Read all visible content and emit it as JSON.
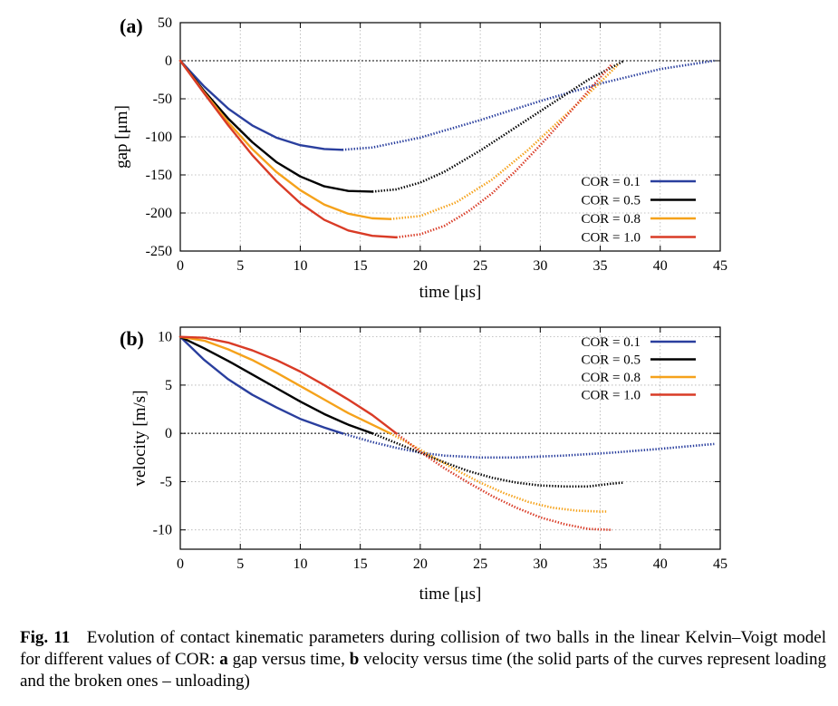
{
  "figure": {
    "caption": {
      "number": "Fig. 11",
      "segments": [
        {
          "text": "Evolution of contact kinematic parameters during collision of two balls in the linear Kelvin–Voigt model for different values of COR: ",
          "bold": false
        },
        {
          "text": "a",
          "bold": true
        },
        {
          "text": " gap versus time, ",
          "bold": false
        },
        {
          "text": "b",
          "bold": true
        },
        {
          "text": " velocity versus time (the solid parts of the curves represent loading and the broken ones – unloading)",
          "bold": false
        }
      ]
    }
  },
  "chart_data": [
    {
      "type": "line",
      "panel_label": "(a)",
      "xlabel": "time [μs]",
      "ylabel": "gap [μm]",
      "xlim": [
        0,
        45
      ],
      "ylim": [
        -250,
        50
      ],
      "xticks": [
        0,
        5,
        10,
        15,
        20,
        25,
        30,
        35,
        40,
        45
      ],
      "yticks": [
        50,
        0,
        -50,
        -100,
        -150,
        -200,
        -250
      ],
      "grid": true,
      "zero_line": true,
      "legend_position": "bottom-right",
      "series": [
        {
          "name": "COR = 0.1",
          "color": "#2a3f9e",
          "loading": {
            "x": [
              0,
              2,
              4,
              6,
              8,
              10,
              12,
              13.5
            ],
            "y": [
              0,
              -34,
              -63,
              -85,
              -101,
              -111,
              -116,
              -117
            ]
          },
          "unloading": {
            "x": [
              13.5,
              16,
              20,
              25,
              30,
              35,
              40,
              44.5
            ],
            "y": [
              -117,
              -114,
              -101,
              -78,
              -53,
              -30,
              -11,
              0
            ]
          }
        },
        {
          "name": "COR = 0.5",
          "color": "#000000",
          "loading": {
            "x": [
              0,
              2,
              4,
              6,
              8,
              10,
              12,
              14,
              16
            ],
            "y": [
              0,
              -40,
              -76,
              -107,
              -133,
              -152,
              -165,
              -171,
              -172
            ]
          },
          "unloading": {
            "x": [
              16,
              18,
              20,
              22,
              25,
              28,
              31,
              34,
              37
            ],
            "y": [
              -172,
              -169,
              -160,
              -146,
              -118,
              -87,
              -56,
              -25,
              0
            ]
          }
        },
        {
          "name": "COR = 0.8",
          "color": "#f5a21b",
          "loading": {
            "x": [
              0,
              2,
              4,
              6,
              8,
              10,
              12,
              14,
              16,
              17.5
            ],
            "y": [
              0,
              -42,
              -81,
              -116,
              -146,
              -170,
              -189,
              -201,
              -207,
              -208
            ]
          },
          "unloading": {
            "x": [
              17.5,
              20,
              23,
              26,
              29,
              32,
              34.5,
              36.5
            ],
            "y": [
              -208,
              -204,
              -186,
              -156,
              -117,
              -73,
              -36,
              -5
            ]
          }
        },
        {
          "name": "COR = 1.0",
          "color": "#d93b26",
          "loading": {
            "x": [
              0,
              2,
              4,
              6,
              8,
              10,
              12,
              14,
              16,
              18
            ],
            "y": [
              0,
              -43,
              -85,
              -124,
              -158,
              -187,
              -209,
              -223,
              -230,
              -232
            ]
          },
          "unloading": {
            "x": [
              18,
              20,
              22,
              24,
              26,
              28,
              30,
              32,
              34,
              36
            ],
            "y": [
              -232,
              -228,
              -217,
              -198,
              -174,
              -144,
              -111,
              -76,
              -40,
              -4
            ]
          }
        }
      ]
    },
    {
      "type": "line",
      "panel_label": "(b)",
      "xlabel": "time [μs]",
      "ylabel": "velocity [m/s]",
      "xlim": [
        0,
        45
      ],
      "ylim": [
        -12,
        11
      ],
      "xticks": [
        0,
        5,
        10,
        15,
        20,
        25,
        30,
        35,
        40,
        45
      ],
      "yticks": [
        10,
        5,
        0,
        -5,
        -10
      ],
      "grid": true,
      "zero_line": true,
      "legend_position": "top-right",
      "series": [
        {
          "name": "COR = 0.1",
          "color": "#2a3f9e",
          "loading": {
            "x": [
              0,
              2,
              4,
              6,
              8,
              10,
              12,
              13.5
            ],
            "y": [
              10,
              7.6,
              5.6,
              4.0,
              2.7,
              1.5,
              0.6,
              0
            ]
          },
          "unloading": {
            "x": [
              13.5,
              16,
              18,
              20,
              22,
              25,
              28,
              32,
              36,
              40,
              44.5
            ],
            "y": [
              0,
              -0.9,
              -1.5,
              -2.0,
              -2.3,
              -2.5,
              -2.5,
              -2.3,
              -2.0,
              -1.6,
              -1.1
            ]
          }
        },
        {
          "name": "COR = 0.5",
          "color": "#000000",
          "loading": {
            "x": [
              0,
              2,
              4,
              6,
              8,
              10,
              12,
              14,
              16
            ],
            "y": [
              10,
              8.8,
              7.5,
              6.1,
              4.7,
              3.3,
              2.0,
              0.9,
              0
            ]
          },
          "unloading": {
            "x": [
              16,
              18,
              20,
              22,
              24,
              26,
              28,
              30,
              32,
              34,
              36,
              37
            ],
            "y": [
              0,
              -1.0,
              -2.0,
              -3.0,
              -3.9,
              -4.6,
              -5.1,
              -5.4,
              -5.5,
              -5.5,
              -5.2,
              -5.1
            ]
          }
        },
        {
          "name": "COR = 0.8",
          "color": "#f5a21b",
          "loading": {
            "x": [
              0,
              2,
              4,
              6,
              8,
              10,
              12,
              14,
              16,
              17.5
            ],
            "y": [
              10,
              9.6,
              8.7,
              7.6,
              6.3,
              4.9,
              3.5,
              2.1,
              0.9,
              0
            ]
          },
          "unloading": {
            "x": [
              17.5,
              19,
              21,
              23,
              25,
              27,
              29,
              31,
              33,
              35,
              35.5
            ],
            "y": [
              0,
              -1.0,
              -2.4,
              -3.8,
              -5.1,
              -6.2,
              -7.1,
              -7.7,
              -8.0,
              -8.1,
              -8.1
            ]
          }
        },
        {
          "name": "COR = 1.0",
          "color": "#d93b26",
          "loading": {
            "x": [
              0,
              2,
              4,
              6,
              8,
              10,
              12,
              14,
              16,
              18
            ],
            "y": [
              10,
              9.9,
              9.4,
              8.6,
              7.6,
              6.4,
              5.0,
              3.5,
              1.9,
              0
            ]
          },
          "unloading": {
            "x": [
              18,
              20,
              22,
              24,
              26,
              28,
              30,
              32,
              34,
              36
            ],
            "y": [
              0,
              -1.9,
              -3.6,
              -5.1,
              -6.5,
              -7.7,
              -8.7,
              -9.4,
              -9.9,
              -10.0
            ]
          }
        }
      ]
    }
  ]
}
